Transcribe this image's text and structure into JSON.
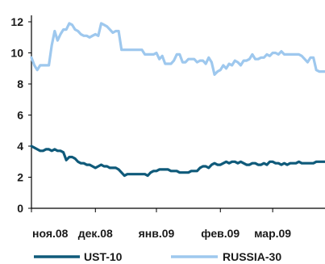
{
  "chart_data": {
    "type": "line",
    "title": "",
    "xlabel": "",
    "ylabel": "",
    "ylim": [
      0,
      12
    ],
    "yticks": [
      0,
      2,
      4,
      6,
      8,
      10,
      12
    ],
    "x_tick_labels": [
      "ноя.08",
      "дек.08",
      "янв.09",
      "фев.09",
      "мар.09"
    ],
    "x_tick_positions": [
      0,
      22,
      43,
      65,
      83
    ],
    "x_range": [
      0,
      101
    ],
    "grid": false,
    "legend_position": "bottom",
    "series": [
      {
        "name": "UST-10",
        "color": "#0f5a7a",
        "x": [
          0,
          1,
          2,
          3,
          4,
          5,
          6,
          7,
          8,
          9,
          10,
          11,
          12,
          13,
          14,
          15,
          16,
          17,
          18,
          19,
          20,
          21,
          22,
          23,
          24,
          25,
          26,
          27,
          28,
          29,
          30,
          31,
          32,
          33,
          34,
          35,
          36,
          37,
          38,
          39,
          40,
          41,
          42,
          43,
          44,
          45,
          46,
          47,
          48,
          49,
          50,
          51,
          52,
          53,
          54,
          55,
          56,
          57,
          58,
          59,
          60,
          61,
          62,
          63,
          64,
          65,
          66,
          67,
          68,
          69,
          70,
          71,
          72,
          73,
          74,
          75,
          76,
          77,
          78,
          79,
          80,
          81,
          82,
          83,
          84,
          85,
          86,
          87,
          88,
          89,
          90,
          91,
          92,
          93,
          94,
          95,
          96,
          97,
          98,
          99,
          100,
          101
        ],
        "values": [
          4.0,
          3.9,
          3.8,
          3.7,
          3.7,
          3.8,
          3.8,
          3.7,
          3.8,
          3.7,
          3.7,
          3.6,
          3.1,
          3.3,
          3.3,
          3.2,
          3.0,
          2.9,
          2.9,
          2.8,
          2.8,
          2.7,
          2.6,
          2.7,
          2.8,
          2.7,
          2.7,
          2.6,
          2.6,
          2.6,
          2.5,
          2.3,
          2.1,
          2.2,
          2.2,
          2.2,
          2.2,
          2.2,
          2.2,
          2.2,
          2.1,
          2.3,
          2.4,
          2.4,
          2.5,
          2.5,
          2.5,
          2.5,
          2.4,
          2.4,
          2.4,
          2.3,
          2.3,
          2.3,
          2.3,
          2.4,
          2.4,
          2.4,
          2.6,
          2.7,
          2.7,
          2.6,
          2.8,
          2.9,
          2.8,
          2.8,
          2.9,
          3.0,
          2.9,
          3.0,
          3.0,
          2.9,
          3.0,
          2.9,
          2.8,
          2.8,
          2.9,
          2.9,
          2.8,
          2.8,
          2.9,
          2.8,
          3.0,
          3.0,
          2.9,
          2.9,
          2.8,
          2.9,
          2.8,
          2.9,
          2.9,
          2.9,
          3.0,
          2.9,
          2.9,
          2.9,
          2.9,
          2.9,
          3.0,
          3.0,
          3.0,
          3.0
        ]
      },
      {
        "name": "RUSSIA-30",
        "color": "#9ec8ee",
        "x": [
          0,
          1,
          2,
          3,
          4,
          5,
          6,
          7,
          8,
          9,
          10,
          11,
          12,
          13,
          14,
          15,
          16,
          17,
          18,
          19,
          20,
          21,
          22,
          23,
          24,
          25,
          26,
          27,
          28,
          29,
          30,
          31,
          32,
          33,
          34,
          35,
          36,
          37,
          38,
          39,
          40,
          41,
          42,
          43,
          44,
          45,
          46,
          47,
          48,
          49,
          50,
          51,
          52,
          53,
          54,
          55,
          56,
          57,
          58,
          59,
          60,
          61,
          62,
          63,
          64,
          65,
          66,
          67,
          68,
          69,
          70,
          71,
          72,
          73,
          74,
          75,
          76,
          77,
          78,
          79,
          80,
          81,
          82,
          83,
          84,
          85,
          86,
          87,
          88,
          89,
          90,
          91,
          92,
          93,
          94,
          95,
          96,
          97,
          98,
          99,
          100,
          101
        ],
        "values": [
          9.7,
          9.2,
          8.9,
          9.2,
          9.2,
          9.2,
          9.2,
          10.5,
          11.4,
          10.8,
          11.2,
          11.5,
          11.5,
          11.9,
          11.8,
          11.5,
          11.4,
          11.2,
          11.1,
          11.1,
          11.0,
          11.1,
          11.2,
          11.1,
          11.9,
          11.8,
          11.7,
          11.5,
          11.3,
          11.4,
          11.4,
          10.2,
          10.2,
          10.2,
          10.2,
          10.2,
          10.2,
          10.2,
          10.2,
          9.9,
          9.9,
          9.9,
          9.9,
          10.0,
          9.6,
          9.8,
          9.3,
          9.3,
          9.3,
          9.5,
          9.9,
          9.9,
          9.4,
          9.4,
          9.6,
          9.6,
          9.6,
          9.4,
          9.5,
          9.5,
          9.3,
          9.7,
          9.4,
          8.6,
          8.8,
          8.9,
          9.2,
          9.0,
          9.3,
          9.2,
          9.5,
          9.4,
          9.2,
          9.5,
          9.5,
          9.6,
          9.9,
          9.6,
          9.6,
          9.7,
          9.7,
          9.9,
          9.8,
          10.0,
          10.0,
          9.9,
          10.1,
          9.9,
          9.9,
          9.9,
          9.9,
          9.9,
          9.9,
          9.8,
          9.6,
          9.4,
          9.7,
          9.7,
          8.9,
          8.8,
          8.8,
          8.8
        ]
      }
    ]
  }
}
